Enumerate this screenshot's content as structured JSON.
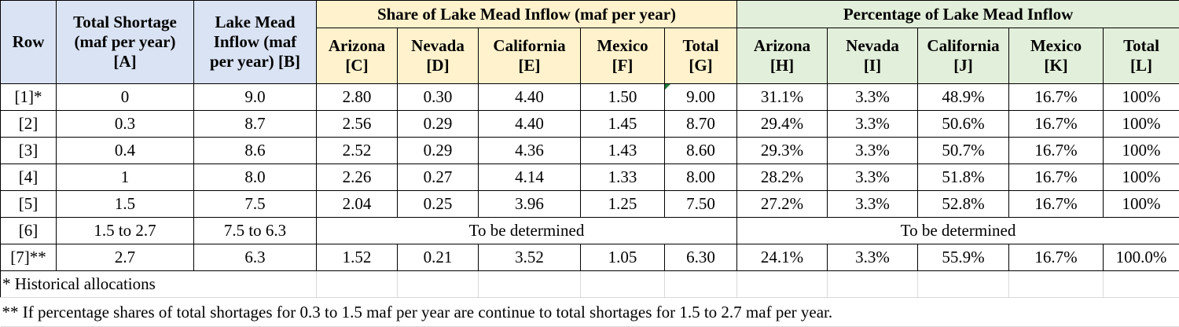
{
  "headers": {
    "row": "Row",
    "total_shortage": [
      "Total Shortage",
      "(maf per year)",
      "[A]"
    ],
    "inflow": [
      "Lake Mead",
      "Inflow (maf",
      "per year) [B]"
    ],
    "share_group": "Share of Lake Mead Inflow (maf per year)",
    "pct_group": "Percentage of Lake Mead Inflow",
    "share_cols": [
      [
        "Arizona",
        "[C]"
      ],
      [
        "Nevada",
        "[D]"
      ],
      [
        "California",
        "[E]"
      ],
      [
        "Mexico",
        "[F]"
      ],
      [
        "Total",
        "[G]"
      ]
    ],
    "pct_cols": [
      [
        "Arizona",
        "[H]"
      ],
      [
        "Nevada",
        "[I]"
      ],
      [
        "California",
        "[J]"
      ],
      [
        "Mexico",
        "[K]"
      ],
      [
        "Total",
        "[L]"
      ]
    ]
  },
  "rows": [
    [
      "[1]*",
      "0",
      "9.0",
      "2.80",
      "0.30",
      "4.40",
      "1.50",
      "9.00",
      "31.1%",
      "3.3%",
      "48.9%",
      "16.7%",
      "100%"
    ],
    [
      "[2]",
      "0.3",
      "8.7",
      "2.56",
      "0.29",
      "4.40",
      "1.45",
      "8.70",
      "29.4%",
      "3.3%",
      "50.6%",
      "16.7%",
      "100%"
    ],
    [
      "[3]",
      "0.4",
      "8.6",
      "2.52",
      "0.29",
      "4.36",
      "1.43",
      "8.60",
      "29.3%",
      "3.3%",
      "50.7%",
      "16.7%",
      "100%"
    ],
    [
      "[4]",
      "1",
      "8.0",
      "2.26",
      "0.27",
      "4.14",
      "1.33",
      "8.00",
      "28.2%",
      "3.3%",
      "51.8%",
      "16.7%",
      "100%"
    ],
    [
      "[5]",
      "1.5",
      "7.5",
      "2.04",
      "0.25",
      "3.96",
      "1.25",
      "7.50",
      "27.2%",
      "3.3%",
      "52.8%",
      "16.7%",
      "100%"
    ]
  ],
  "row6": {
    "row": "[6]",
    "shortage": "1.5 to 2.7",
    "inflow": "7.5 to 6.3",
    "share_tbd": "To be determined",
    "pct_tbd": "To be determined"
  },
  "row7": [
    "[7]**",
    "2.7",
    "6.3",
    "1.52",
    "0.21",
    "3.52",
    "1.05",
    "6.30",
    "24.1%",
    "3.3%",
    "55.9%",
    "16.7%",
    "100.0%"
  ],
  "notes": {
    "note1": "* Historical allocations",
    "note2": "** If percentage shares of total shortages for 0.3 to 1.5 maf per year are continue to total shortages for 1.5 to 2.7 maf per year."
  }
}
